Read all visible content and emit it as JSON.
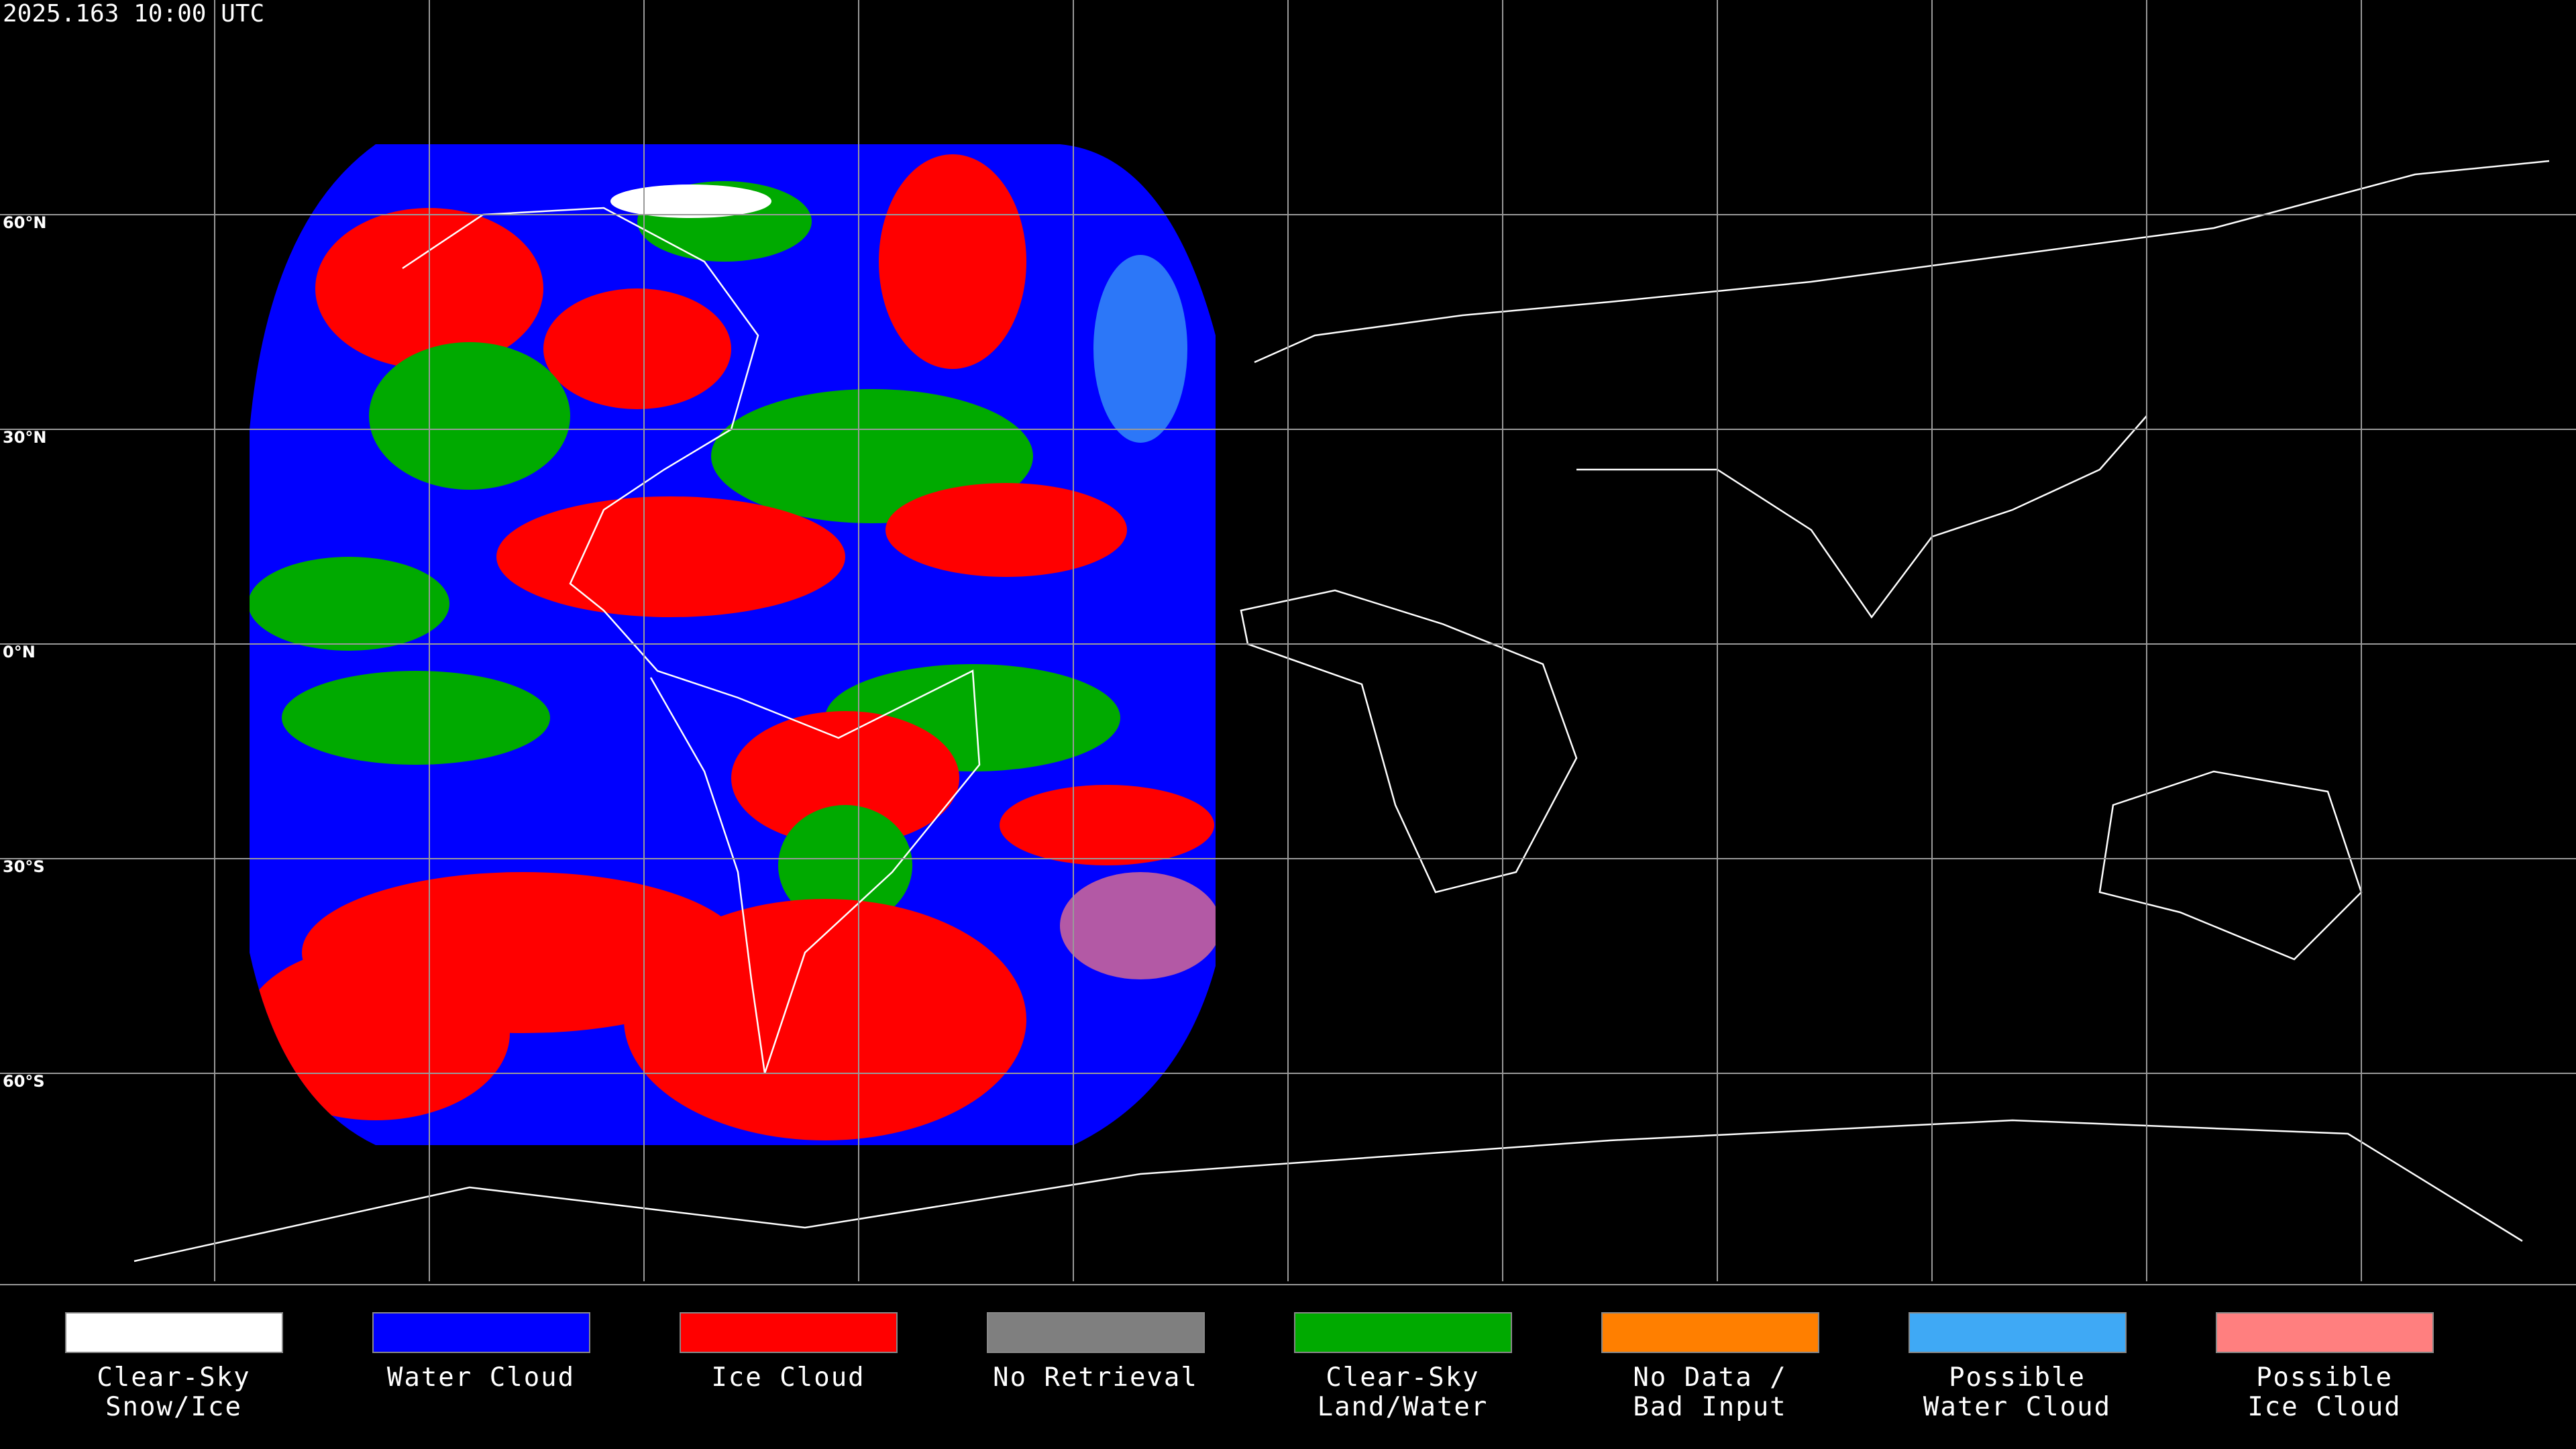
{
  "timestamp": "2025.163 10:00 UTC",
  "lat_labels": [
    "60°N",
    "30°N",
    "0°N",
    "30°S",
    "60°S"
  ],
  "legend": [
    {
      "lines": [
        "Clear-Sky",
        "Snow/Ice"
      ],
      "color": "#ffffff"
    },
    {
      "lines": [
        "Water Cloud"
      ],
      "color": "#0000ff"
    },
    {
      "lines": [
        "Ice Cloud"
      ],
      "color": "#ff0000"
    },
    {
      "lines": [
        "No Retrieval"
      ],
      "color": "#7f7f7f"
    },
    {
      "lines": [
        "Clear-Sky",
        "Land/Water"
      ],
      "color": "#00aa00"
    },
    {
      "lines": [
        "No Data /",
        "Bad Input"
      ],
      "color": "#ff7f00"
    },
    {
      "lines": [
        "Possible",
        "Water Cloud"
      ],
      "color": "#3fa9f5"
    },
    {
      "lines": [
        "Possible",
        "Ice Cloud"
      ],
      "color": "#ff7f7f"
    }
  ]
}
